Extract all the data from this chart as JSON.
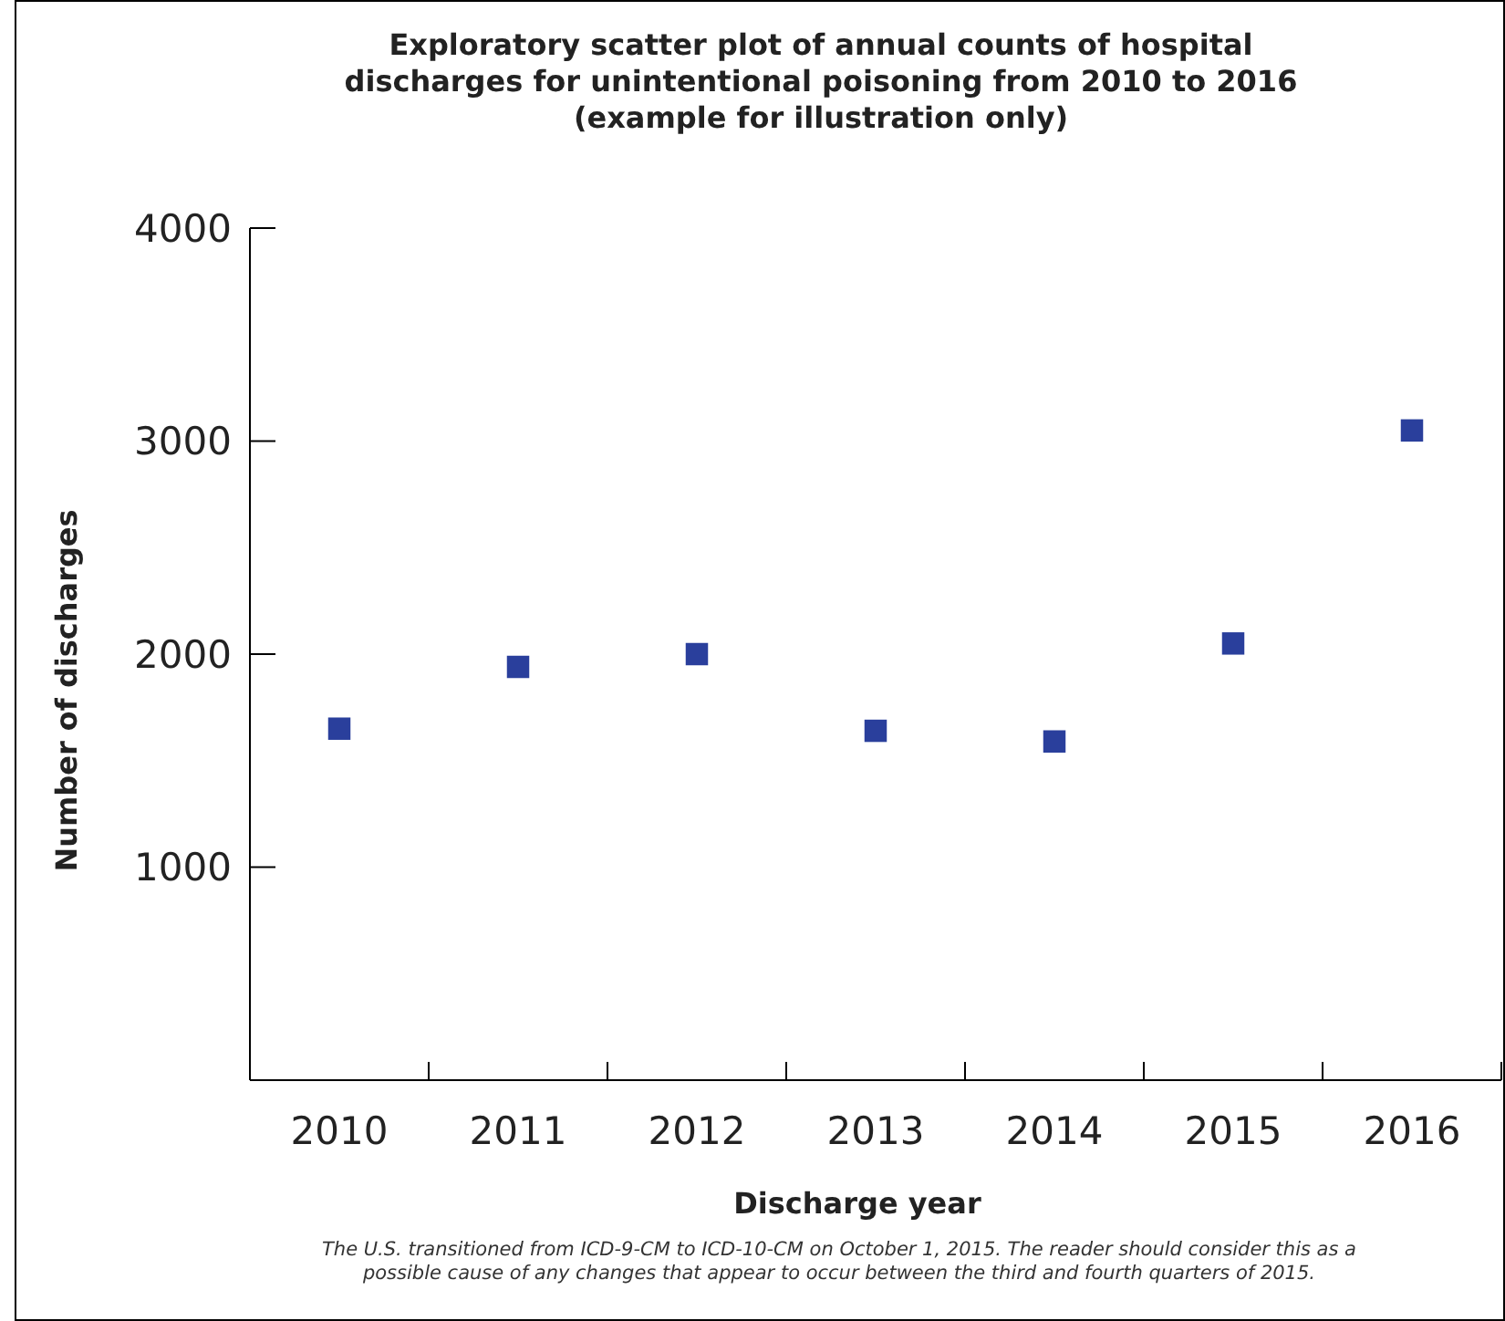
{
  "chart_data": {
    "type": "scatter",
    "title": "Exploratory scatter plot of annual counts of hospital\ndischarges for unintentional poisoning from 2010 to 2016\n(example for illustration only)",
    "xlabel": "Discharge year",
    "ylabel": "Number of discharges",
    "categories": [
      "2010",
      "2011",
      "2012",
      "2013",
      "2014",
      "2015",
      "2016"
    ],
    "series": [
      {
        "color": "#2a3f9c",
        "values": [
          1650,
          1940,
          2000,
          1640,
          1590,
          2050,
          3050
        ]
      }
    ],
    "ylim": [
      0,
      4000
    ],
    "yticks": [
      1000,
      2000,
      3000,
      4000
    ],
    "marker": "square",
    "grid": false,
    "annotations": [
      "The U.S. transitioned from ICD-9-CM to ICD-10-CM on October 1, 2015. The reader should consider this as a\npossible cause of any changes that appear to occur between the third and fourth quarters of 2015."
    ]
  }
}
